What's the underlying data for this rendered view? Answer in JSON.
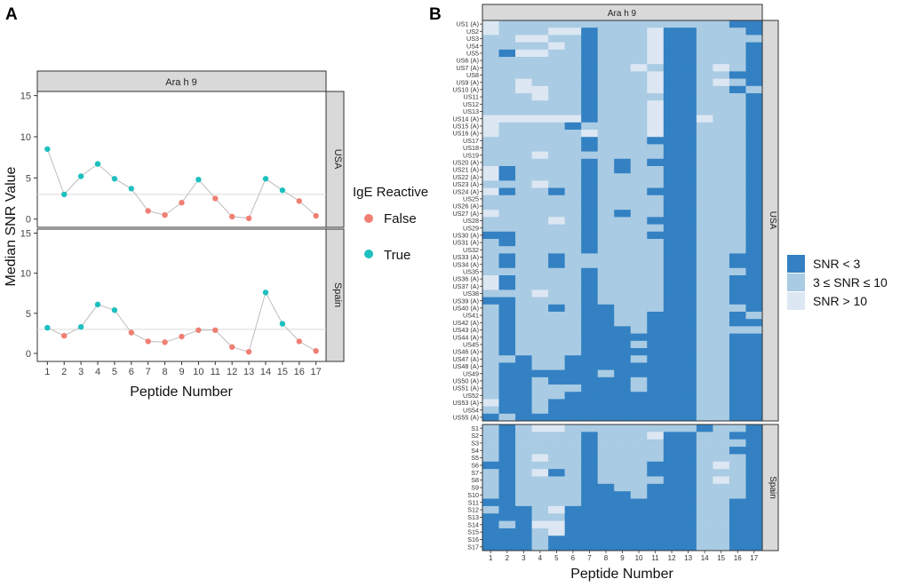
{
  "panels": {
    "a": "A",
    "b": "B"
  },
  "colors": {
    "false": "#F07F73",
    "true": "#1DBFBF",
    "line": "#BDBDBD",
    "refline": "#D9D9D9",
    "strip": "#D9D9D9",
    "low": "#3381C3",
    "mid": "#A9CBE3",
    "high": "#DCE7F3"
  },
  "legend_a": {
    "title": "IgE Reactive",
    "items": [
      "False",
      "True"
    ]
  },
  "legend_b": {
    "items": [
      "SNR < 3",
      "3 ≤ SNR ≤ 10",
      "SNR > 10"
    ]
  },
  "chart_data": [
    {
      "type": "line",
      "title": "Ara h 9",
      "xlabel": "Peptide Number",
      "ylabel": "Median SNR Value",
      "x": [
        1,
        2,
        3,
        4,
        5,
        6,
        7,
        8,
        9,
        10,
        11,
        12,
        13,
        14,
        15,
        16,
        17
      ],
      "xlim": [
        0.4,
        17.6
      ],
      "ylim": [
        -1,
        15.5
      ],
      "yticks": [
        0,
        5,
        10,
        15
      ],
      "threshold": 3,
      "series": [
        {
          "name": "USA",
          "values": [
            8.5,
            3.0,
            5.2,
            6.7,
            4.9,
            3.7,
            1.0,
            0.5,
            2.0,
            4.8,
            2.5,
            0.3,
            0.1,
            4.9,
            3.5,
            2.2,
            0.4
          ],
          "reactive": [
            true,
            true,
            true,
            true,
            true,
            true,
            false,
            false,
            false,
            true,
            false,
            false,
            false,
            true,
            true,
            false,
            false
          ]
        },
        {
          "name": "Spain",
          "values": [
            3.2,
            2.2,
            3.3,
            6.1,
            5.4,
            2.6,
            1.5,
            1.4,
            2.1,
            2.9,
            2.9,
            0.8,
            0.2,
            7.6,
            3.7,
            1.5,
            0.3
          ],
          "reactive": [
            true,
            false,
            true,
            true,
            true,
            false,
            false,
            false,
            false,
            false,
            false,
            false,
            false,
            true,
            true,
            false,
            false
          ]
        }
      ]
    },
    {
      "type": "heatmap",
      "title": "Ara h 9",
      "xlabel": "Peptide Number",
      "x": [
        1,
        2,
        3,
        4,
        5,
        6,
        7,
        8,
        9,
        10,
        11,
        12,
        13,
        14,
        15,
        16,
        17
      ],
      "value_key": {
        "0": "SNR < 3",
        "1": "3 ≤ SNR ≤ 10",
        "2": "SNR > 10"
      },
      "facets": [
        {
          "name": "USA",
          "rows": [
            "US1 (A)",
            "US2",
            "US3",
            "US4",
            "US5",
            "US6 (A)",
            "US7 (A)",
            "US8",
            "US9 (A)",
            "US10 (A)",
            "US11",
            "US12",
            "US13",
            "US14 (A)",
            "US15 (A)",
            "US16 (A)",
            "US17",
            "US18",
            "US19",
            "US20 (A)",
            "US21 (A)",
            "US22 (A)",
            "US23 (A)",
            "US24 (A)",
            "US25",
            "US26 (A)",
            "US27 (A)",
            "US28",
            "US29",
            "US30 (A)",
            "US31 (A)",
            "US32",
            "US33 (A)",
            "US34 (A)",
            "US35",
            "US36 (A)",
            "US37 (A)",
            "US38",
            "US39 (A)",
            "US40 (A)",
            "US41",
            "US42 (A)",
            "US43 (A)",
            "US44 (A)",
            "US45",
            "US46 (A)",
            "US47 (A)",
            "US48 (A)",
            "US49",
            "US50 (A)",
            "US51 (A)",
            "US52",
            "US53 (A)",
            "US54",
            "US55 (A)"
          ],
          "values": [
            "21111111111111100",
            "21112201112001110",
            "11221101112001111",
            "11112101112001110",
            "10221101112001110",
            "11111101112001110",
            "11111101121001210",
            "11111101112001100",
            "11211101112001210",
            "11221101112001101",
            "11121101111001110",
            "11111101112001110",
            "11111101112001110",
            "22222201112002110",
            "21111011112001110",
            "21111121112001110",
            "11111101110001110",
            "11111101111001110",
            "11121111111001110",
            "11111101010001110",
            "20111101011001110",
            "20111101111001110",
            "11121101111001110",
            "20110101110001110",
            "11111101111001110",
            "11111101111001110",
            "21111101011001110",
            "11112101110001110",
            "11111101111001110",
            "00111101110001110",
            "10111101111001110",
            "11111101111001110",
            "10110111111001100",
            "10110111111001100",
            "11111101111001110",
            "20111101111001100",
            "20111101111001100",
            "11121101111001100",
            "00111101111001100",
            "10110100111001110",
            "10111100110001101",
            "10111100110001100",
            "10111100010001111",
            "10111100000001100",
            "10111100010001100",
            "10111100000001100",
            "11011000010001100",
            "10011000000001100",
            "10000001000001100",
            "10010000010001100",
            "10011100010001100",
            "10011000000001100",
            "20010000000001100",
            "10010000000001100",
            "01000000000001100"
          ]
        },
        {
          "name": "Spain",
          "rows": [
            "S1",
            "S2",
            "S3",
            "S4",
            "S5",
            "S6",
            "S7",
            "S8",
            "S9",
            "S10",
            "S11",
            "S12",
            "S13",
            "S14",
            "S15",
            "S16",
            "S17"
          ],
          "values": [
            "10122111111110110",
            "10111101112001100",
            "10111101111001110",
            "10111101111001100",
            "10121101111001110",
            "00111101110001210",
            "10120101110001110",
            "10111101111001210",
            "10111100110001110",
            "10111100010001110",
            "00111100000001100",
            "10012000000001100",
            "00011000000001100",
            "01022000000001100",
            "00012000000001100",
            "00010000000001100",
            "00010000000001100"
          ]
        }
      ]
    }
  ]
}
